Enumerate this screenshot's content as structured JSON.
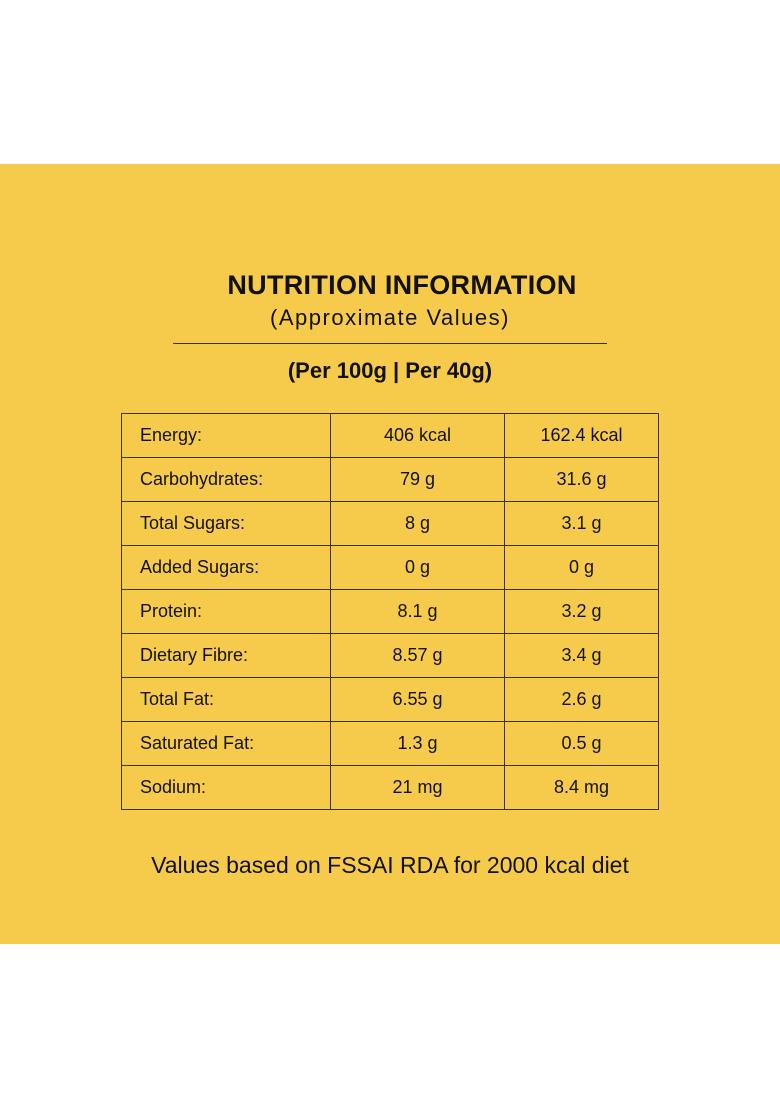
{
  "title": "NUTRITION INFORMATION",
  "subtitle": "(Approximate Values)",
  "serving_header": "(Per 100g | Per 40g)",
  "rows": [
    {
      "nutrient": "Energy:",
      "per100": "406 kcal",
      "per40": "162.4 kcal"
    },
    {
      "nutrient": "Carbohydrates:",
      "per100": "79 g",
      "per40": "31.6 g"
    },
    {
      "nutrient": "Total Sugars:",
      "per100": "8 g",
      "per40": "3.1 g"
    },
    {
      "nutrient": "Added Sugars:",
      "per100": "0 g",
      "per40": "0 g"
    },
    {
      "nutrient": "Protein:",
      "per100": "8.1 g",
      "per40": "3.2 g"
    },
    {
      "nutrient": "Dietary Fibre:",
      "per100": "8.57 g",
      "per40": "3.4 g"
    },
    {
      "nutrient": "Total Fat:",
      "per100": "6.55 g",
      "per40": "2.6 g"
    },
    {
      "nutrient": "Saturated Fat:",
      "per100": "1.3 g",
      "per40": "0.5 g"
    },
    {
      "nutrient": "Sodium:",
      "per100": "21 mg",
      "per40": "8.4 mg"
    }
  ],
  "footnote": "Values based on FSSAI RDA for 2000 kcal diet",
  "colors": {
    "background": "#F6CB4B",
    "text": "#111111"
  }
}
